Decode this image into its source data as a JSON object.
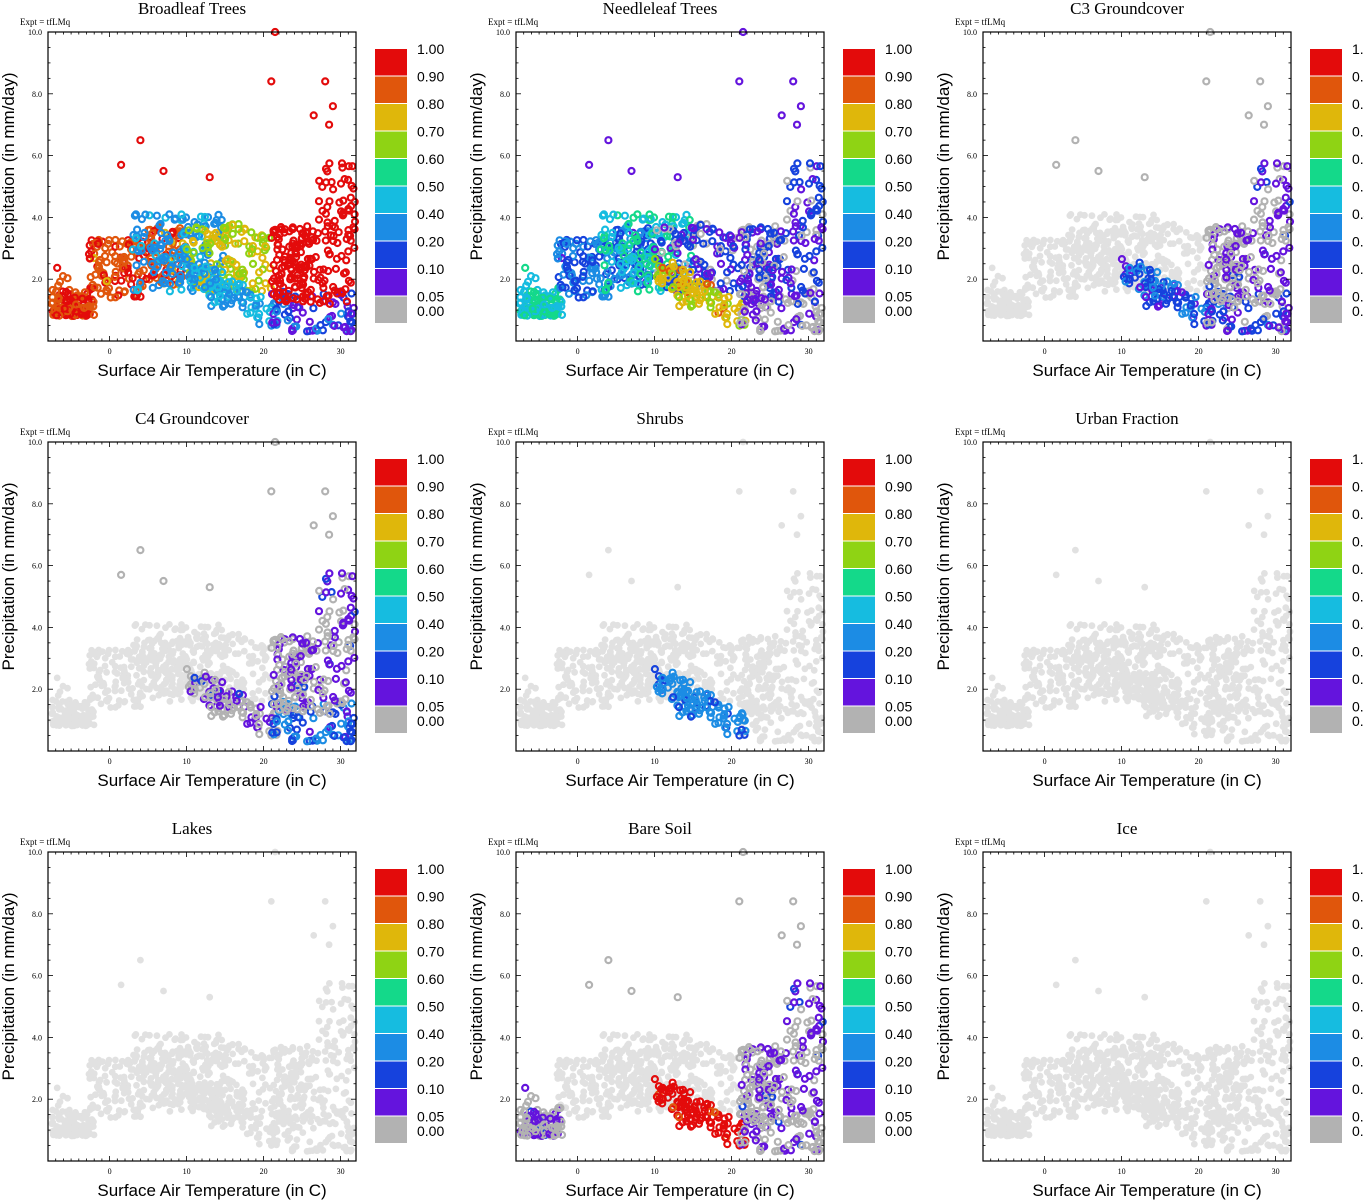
{
  "figure": {
    "expt_label": "Expt = tfLMq",
    "xlabel": "Surface Air Temperature (in C)",
    "ylabel": "Precipitation (in mm/day)"
  },
  "colorbar": {
    "levels": [
      "1.00",
      "0.90",
      "0.80",
      "0.70",
      "0.60",
      "0.50",
      "0.40",
      "0.20",
      "0.10",
      "0.05",
      "0.00"
    ],
    "colors": [
      "#e30b0b",
      "#e0560c",
      "#dfb70b",
      "#8fd314",
      "#14d98a",
      "#16bce0",
      "#1c8ce4",
      "#1642dd",
      "#6414dd",
      "#b2b2b2"
    ],
    "background_point_color": "#e1e1e1"
  },
  "chart_data": [
    {
      "type": "scatter",
      "title": "Broadleaf Trees",
      "xlabel": "Surface Air Temperature (in C)",
      "ylabel": "Precipitation (in mm/day)",
      "xlim": [
        -8,
        32
      ],
      "ylim": [
        0,
        10
      ],
      "xticks": [
        "0",
        "10",
        "20",
        "30"
      ],
      "yticks": [
        "2.0",
        "4.0",
        "6.0",
        "8.0",
        "10.0"
      ],
      "cluster_fractions": {
        "cold_low_precip": 0.85,
        "cool_mid": 0.82,
        "mild_mid": 0.25,
        "warm_band": 0.65,
        "warm_dry": 0.3,
        "hot_dry": 0.1,
        "hot_wet": 0.95
      }
    },
    {
      "type": "scatter",
      "title": "Needleleaf Trees",
      "xlabel": "Surface Air Temperature (in C)",
      "ylabel": "Precipitation (in mm/day)",
      "xlim": [
        -8,
        32
      ],
      "ylim": [
        0,
        10
      ],
      "xticks": [
        "0",
        "10",
        "20",
        "30"
      ],
      "yticks": [
        "2.0",
        "4.0",
        "6.0",
        "8.0",
        "10.0"
      ],
      "cluster_fractions": {
        "cold_low_precip": 0.45,
        "cool_mid": 0.15,
        "mild_mid": 0.45,
        "warm_band": 0.07,
        "warm_dry": 0.68,
        "hot_dry": 0.0,
        "hot_wet": 0.06
      }
    },
    {
      "type": "scatter",
      "title": "C3 Groundcover",
      "xlabel": "Surface Air Temperature (in C)",
      "ylabel": "Precipitation (in mm/day)",
      "xlim": [
        -8,
        32
      ],
      "ylim": [
        0,
        10
      ],
      "xticks": [
        "0",
        "10",
        "20",
        "30"
      ],
      "yticks": [
        "2.0",
        "4.0",
        "6.0",
        "8.0",
        "10.0"
      ],
      "cluster_fractions": {
        "cold_low_precip": null,
        "cool_mid": null,
        "mild_mid": null,
        "warm_band": null,
        "warm_dry": 0.12,
        "hot_dry": 0.08,
        "hot_wet": 0.0
      }
    },
    {
      "type": "scatter",
      "title": "C4 Groundcover",
      "xlabel": "Surface Air Temperature (in C)",
      "ylabel": "Precipitation (in mm/day)",
      "xlim": [
        -8,
        32
      ],
      "ylim": [
        0,
        10
      ],
      "xticks": [
        "0",
        "10",
        "20",
        "30"
      ],
      "yticks": [
        "2.0",
        "4.0",
        "6.0",
        "8.0",
        "10.0"
      ],
      "cluster_fractions": {
        "cold_low_precip": null,
        "cool_mid": null,
        "mild_mid": null,
        "warm_band": null,
        "warm_dry": 0.0,
        "hot_dry": 0.15,
        "hot_wet": 0.0
      }
    },
    {
      "type": "scatter",
      "title": "Shrubs",
      "xlabel": "Surface Air Temperature (in C)",
      "ylabel": "Precipitation (in mm/day)",
      "xlim": [
        -8,
        32
      ],
      "ylim": [
        0,
        10
      ],
      "xticks": [
        "0",
        "10",
        "20",
        "30"
      ],
      "yticks": [
        "2.0",
        "4.0",
        "6.0",
        "8.0",
        "10.0"
      ],
      "cluster_fractions": {
        "cold_low_precip": null,
        "cool_mid": null,
        "mild_mid": null,
        "warm_band": null,
        "warm_dry": 0.2,
        "hot_dry": null,
        "hot_wet": null
      }
    },
    {
      "type": "scatter",
      "title": "Urban Fraction",
      "xlabel": "Surface Air Temperature (in C)",
      "ylabel": "Precipitation (in mm/day)",
      "xlim": [
        -8,
        32
      ],
      "ylim": [
        0,
        10
      ],
      "xticks": [
        "0",
        "10",
        "20",
        "30"
      ],
      "yticks": [
        "2.0",
        "4.0",
        "6.0",
        "8.0",
        "10.0"
      ],
      "cluster_fractions": {
        "cold_low_precip": null,
        "cool_mid": null,
        "mild_mid": null,
        "warm_band": null,
        "warm_dry": null,
        "hot_dry": null,
        "hot_wet": null
      }
    },
    {
      "type": "scatter",
      "title": "Lakes",
      "xlabel": "Surface Air Temperature (in C)",
      "ylabel": "Precipitation (in mm/day)",
      "xlim": [
        -8,
        32
      ],
      "ylim": [
        0,
        10
      ],
      "xticks": [
        "0",
        "10",
        "20",
        "30"
      ],
      "yticks": [
        "2.0",
        "4.0",
        "6.0",
        "8.0",
        "10.0"
      ],
      "cluster_fractions": {
        "cold_low_precip": null,
        "cool_mid": null,
        "mild_mid": null,
        "warm_band": null,
        "warm_dry": null,
        "hot_dry": null,
        "hot_wet": null
      }
    },
    {
      "type": "scatter",
      "title": "Bare Soil",
      "xlabel": "Surface Air Temperature (in C)",
      "ylabel": "Precipitation (in mm/day)",
      "xlim": [
        -8,
        32
      ],
      "ylim": [
        0,
        10
      ],
      "xticks": [
        "0",
        "10",
        "20",
        "30"
      ],
      "yticks": [
        "2.0",
        "4.0",
        "6.0",
        "8.0",
        "10.0"
      ],
      "cluster_fractions": {
        "cold_low_precip": 0.0,
        "cool_mid": null,
        "mild_mid": null,
        "warm_band": null,
        "warm_dry": 0.92,
        "hot_dry": 0.0,
        "hot_wet": 0.0
      }
    },
    {
      "type": "scatter",
      "title": "Ice",
      "xlabel": "Surface Air Temperature (in C)",
      "ylabel": "Precipitation (in mm/day)",
      "xlim": [
        -8,
        32
      ],
      "ylim": [
        0,
        10
      ],
      "xticks": [
        "0",
        "10",
        "20",
        "30"
      ],
      "yticks": [
        "2.0",
        "4.0",
        "6.0",
        "8.0",
        "10.0"
      ],
      "cluster_fractions": {
        "cold_low_precip": null,
        "cool_mid": null,
        "mild_mid": null,
        "warm_band": null,
        "warm_dry": null,
        "hot_dry": null,
        "hot_wet": null
      }
    }
  ]
}
